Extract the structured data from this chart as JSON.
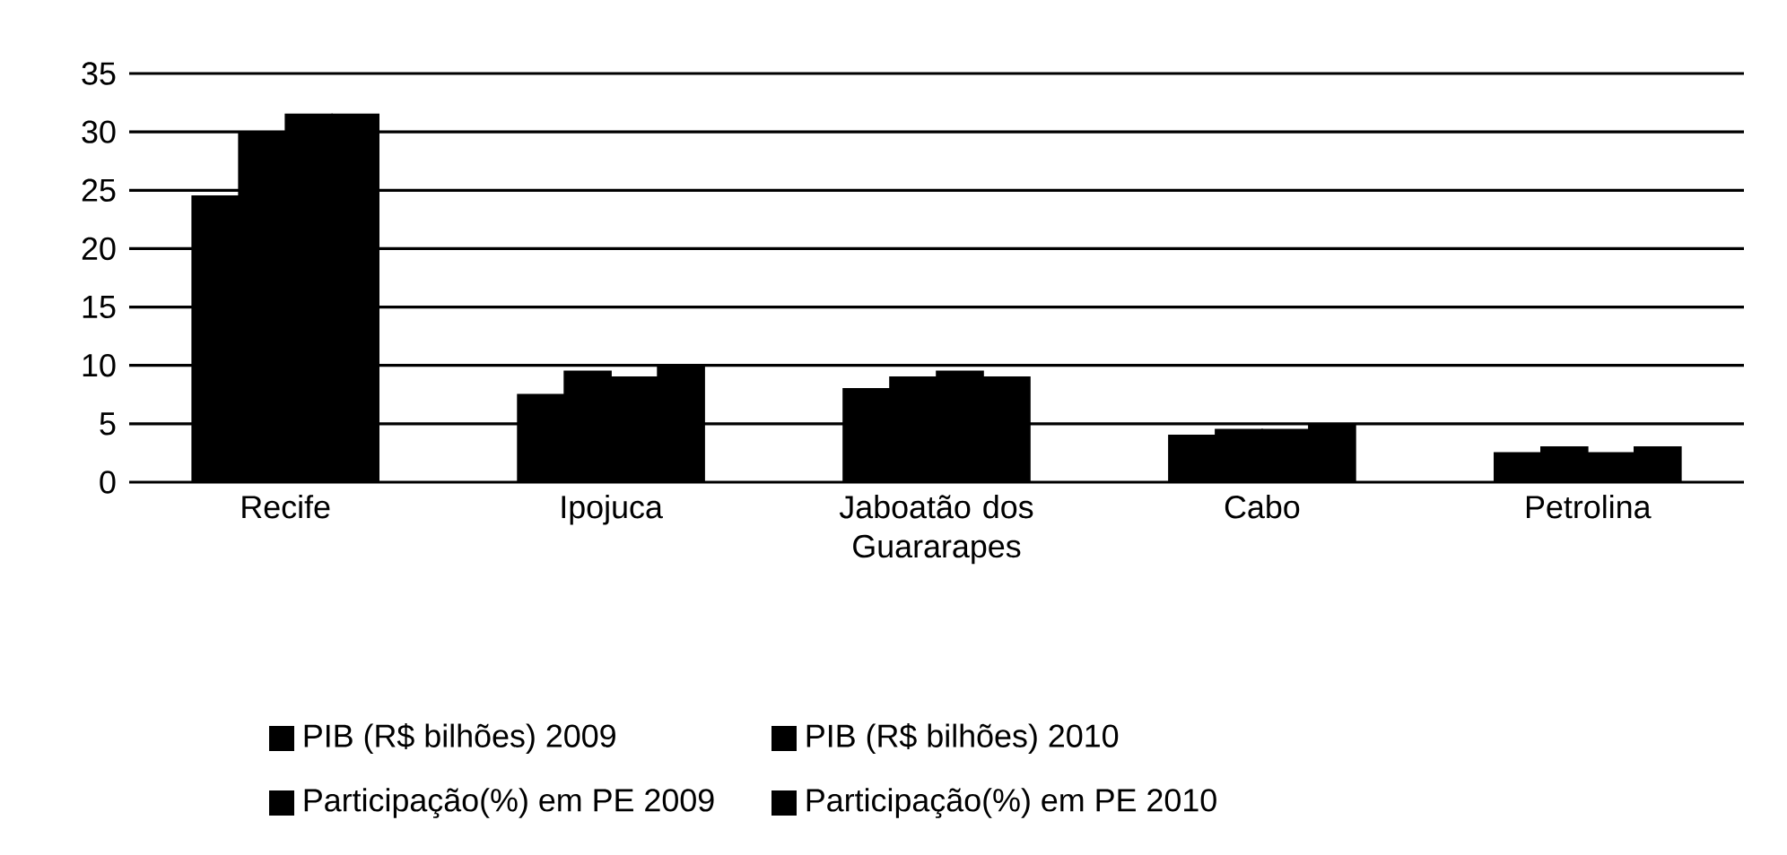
{
  "chart_data": {
    "type": "bar",
    "categories": [
      "Recife",
      "Ipojuca",
      "Jaboatão dos Guararapes",
      "Cabo",
      "Petrolina"
    ],
    "series": [
      {
        "name": "PIB (R$ bilhões) 2009",
        "color": "#000000",
        "values": [
          24.5,
          7.5,
          8,
          4,
          2.5
        ]
      },
      {
        "name": "PIB (R$ bilhões) 2010",
        "color": "#000000",
        "values": [
          30,
          9.5,
          9,
          4.5,
          3
        ]
      },
      {
        "name": "Participação(%) em PE 2009",
        "color": "#000000",
        "values": [
          31.5,
          9,
          9.5,
          4.5,
          2.5
        ]
      },
      {
        "name": "Participação(%) em PE 2010",
        "color": "#000000",
        "values": [
          31.5,
          10,
          9,
          5,
          3
        ]
      }
    ],
    "ylim": [
      0,
      35
    ],
    "yticks": [
      0,
      5,
      10,
      15,
      20,
      25,
      30,
      35
    ],
    "grid": "y",
    "legend": "bottom"
  }
}
